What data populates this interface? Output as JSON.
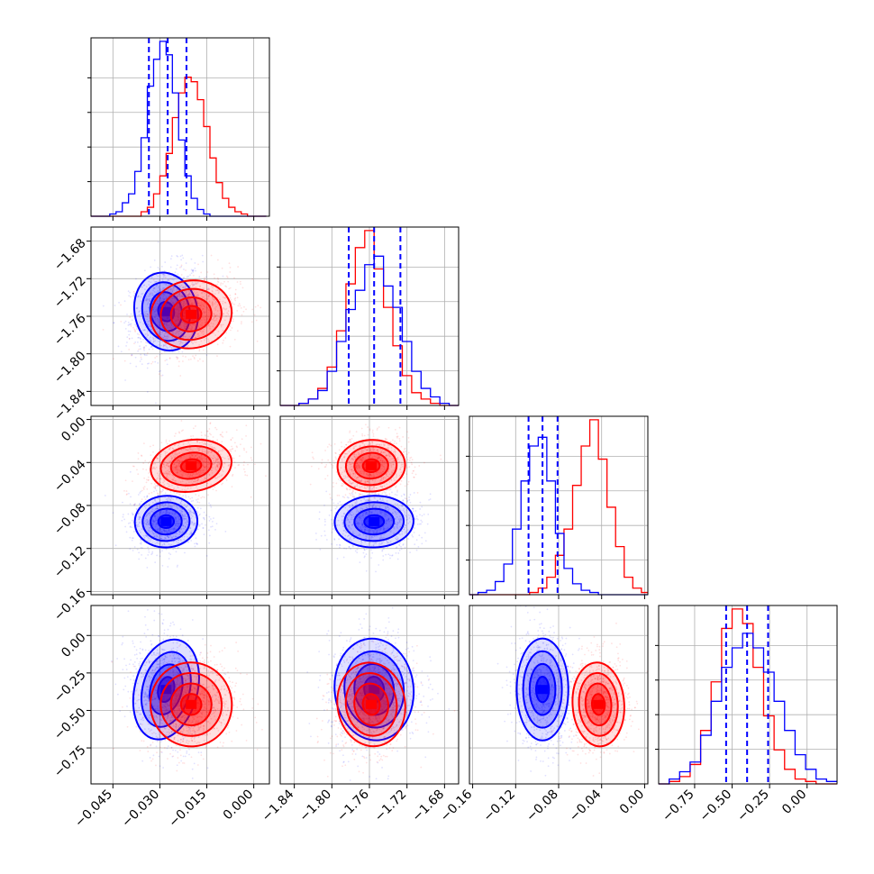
{
  "chart_data": {
    "type": "corner",
    "parameters": 4,
    "grid": true,
    "colors": {
      "series_a": "#0000ff",
      "series_b": "#ff0000"
    },
    "params": [
      {
        "index": 0,
        "range": [
          -0.052,
          0.005
        ],
        "ticks": [
          -0.045,
          -0.03,
          -0.015,
          0.0
        ],
        "tick_labels": [
          "−0.045",
          "−0.030",
          "−0.015",
          "0.000"
        ],
        "quantiles": [
          -0.0335,
          -0.0275,
          -0.0215
        ],
        "hist_bins": [
          -0.052,
          -0.05,
          -0.048,
          -0.046,
          -0.044,
          -0.042,
          -0.04,
          -0.038,
          -0.036,
          -0.034,
          -0.032,
          -0.03,
          -0.028,
          -0.026,
          -0.024,
          -0.022,
          -0.02,
          -0.018,
          -0.016,
          -0.014,
          -0.012,
          -0.01,
          -0.008,
          -0.006,
          -0.004,
          -0.002,
          0.0,
          0.002,
          0.004
        ],
        "hist_blue": [
          0,
          0,
          0,
          1,
          2,
          6,
          10,
          20,
          35,
          58,
          70,
          78,
          72,
          55,
          34,
          18,
          8,
          3,
          1,
          0,
          0,
          0,
          0,
          0,
          0,
          0,
          0,
          0
        ],
        "hist_red": [
          0,
          0,
          0,
          0,
          0,
          0,
          0,
          0,
          2,
          4,
          10,
          18,
          28,
          44,
          55,
          62,
          60,
          52,
          40,
          26,
          15,
          8,
          4,
          2,
          1,
          0,
          0,
          0
        ],
        "mean_blue": -0.028,
        "sd_blue": 0.005,
        "mean_red": -0.02,
        "sd_red": 0.0065
      },
      {
        "index": 1,
        "range": [
          -1.855,
          -1.665
        ],
        "ticks": [
          -1.84,
          -1.8,
          -1.76,
          -1.72,
          -1.68
        ],
        "tick_labels": [
          "−1.84",
          "−1.80",
          "−1.76",
          "−1.72",
          "−1.68"
        ],
        "quantiles": [
          -1.782,
          -1.755,
          -1.727
        ],
        "hist_bins": [
          -1.855,
          -1.845,
          -1.835,
          -1.825,
          -1.815,
          -1.805,
          -1.795,
          -1.785,
          -1.775,
          -1.765,
          -1.755,
          -1.745,
          -1.735,
          -1.725,
          -1.715,
          -1.705,
          -1.695,
          -1.685,
          -1.675,
          -1.665
        ],
        "hist_blue": [
          0,
          0,
          1,
          3,
          7,
          16,
          30,
          45,
          54,
          66,
          70,
          56,
          46,
          30,
          16,
          8,
          4,
          1,
          0
        ],
        "hist_red": [
          0,
          0,
          1,
          3,
          8,
          18,
          35,
          57,
          74,
          82,
          64,
          46,
          28,
          14,
          6,
          3,
          1,
          0,
          0
        ],
        "mean_blue": -1.755,
        "sd_blue": 0.021,
        "mean_red": -1.758,
        "sd_red": 0.018
      },
      {
        "index": 2,
        "range": [
          -0.163,
          0.003
        ],
        "ticks": [
          -0.16,
          -0.12,
          -0.08,
          -0.04,
          0.0
        ],
        "tick_labels": [
          "−0.16",
          "−0.12",
          "−0.08",
          "−0.04",
          "0.00"
        ],
        "quantiles": [
          -0.108,
          -0.095,
          -0.081
        ],
        "hist_bins": [
          -0.163,
          -0.155,
          -0.147,
          -0.139,
          -0.131,
          -0.123,
          -0.115,
          -0.107,
          -0.099,
          -0.091,
          -0.083,
          -0.075,
          -0.067,
          -0.059,
          -0.051,
          -0.043,
          -0.035,
          -0.027,
          -0.019,
          -0.011,
          -0.003,
          0.003
        ],
        "hist_blue": [
          0,
          1,
          2,
          6,
          14,
          30,
          52,
          68,
          72,
          52,
          28,
          12,
          5,
          2,
          1,
          0,
          0,
          0,
          0,
          0,
          0
        ],
        "hist_red": [
          0,
          0,
          0,
          0,
          0,
          0,
          0,
          1,
          3,
          8,
          18,
          30,
          50,
          68,
          80,
          62,
          40,
          22,
          8,
          3,
          1
        ],
        "mean_blue": -0.095,
        "sd_blue": 0.012,
        "mean_red": -0.043,
        "sd_red": 0.012
      },
      {
        "index": 3,
        "range": [
          -0.99,
          0.2
        ],
        "ticks": [
          -0.75,
          -0.5,
          -0.25,
          0.0
        ],
        "tick_labels": [
          "−0.75",
          "−0.50",
          "−0.25",
          "0.00"
        ],
        "quantiles": [
          -0.54,
          -0.4,
          -0.26
        ],
        "hist_bins": [
          -0.99,
          -0.92,
          -0.85,
          -0.78,
          -0.71,
          -0.64,
          -0.57,
          -0.5,
          -0.43,
          -0.36,
          -0.29,
          -0.22,
          -0.15,
          -0.08,
          -0.01,
          0.06,
          0.13,
          0.2
        ],
        "hist_blue": [
          0,
          2,
          5,
          9,
          20,
          34,
          48,
          56,
          62,
          56,
          46,
          34,
          22,
          12,
          6,
          2,
          1
        ],
        "hist_red": [
          0,
          1,
          3,
          8,
          22,
          42,
          64,
          72,
          66,
          48,
          28,
          14,
          6,
          2,
          1,
          0,
          0
        ],
        "mean_blue": -0.36,
        "sd_blue": 0.17,
        "mean_red": -0.46,
        "sd_red": 0.14
      }
    ],
    "correlations": {
      "1_0": {
        "blue": 0.25,
        "red": 0.25
      },
      "2_0": {
        "blue": 0.1,
        "red": 0.3
      },
      "2_1": {
        "blue": 0.05,
        "red": 0.1
      },
      "3_0": {
        "blue": -0.2,
        "red": 0.1
      },
      "3_1": {
        "blue": 0.1,
        "red": 0.15
      },
      "3_2": {
        "blue": 0.0,
        "red": 0.05
      }
    },
    "contour_levels_sigma": [
      0.5,
      1.0,
      1.5,
      2.0
    ]
  }
}
